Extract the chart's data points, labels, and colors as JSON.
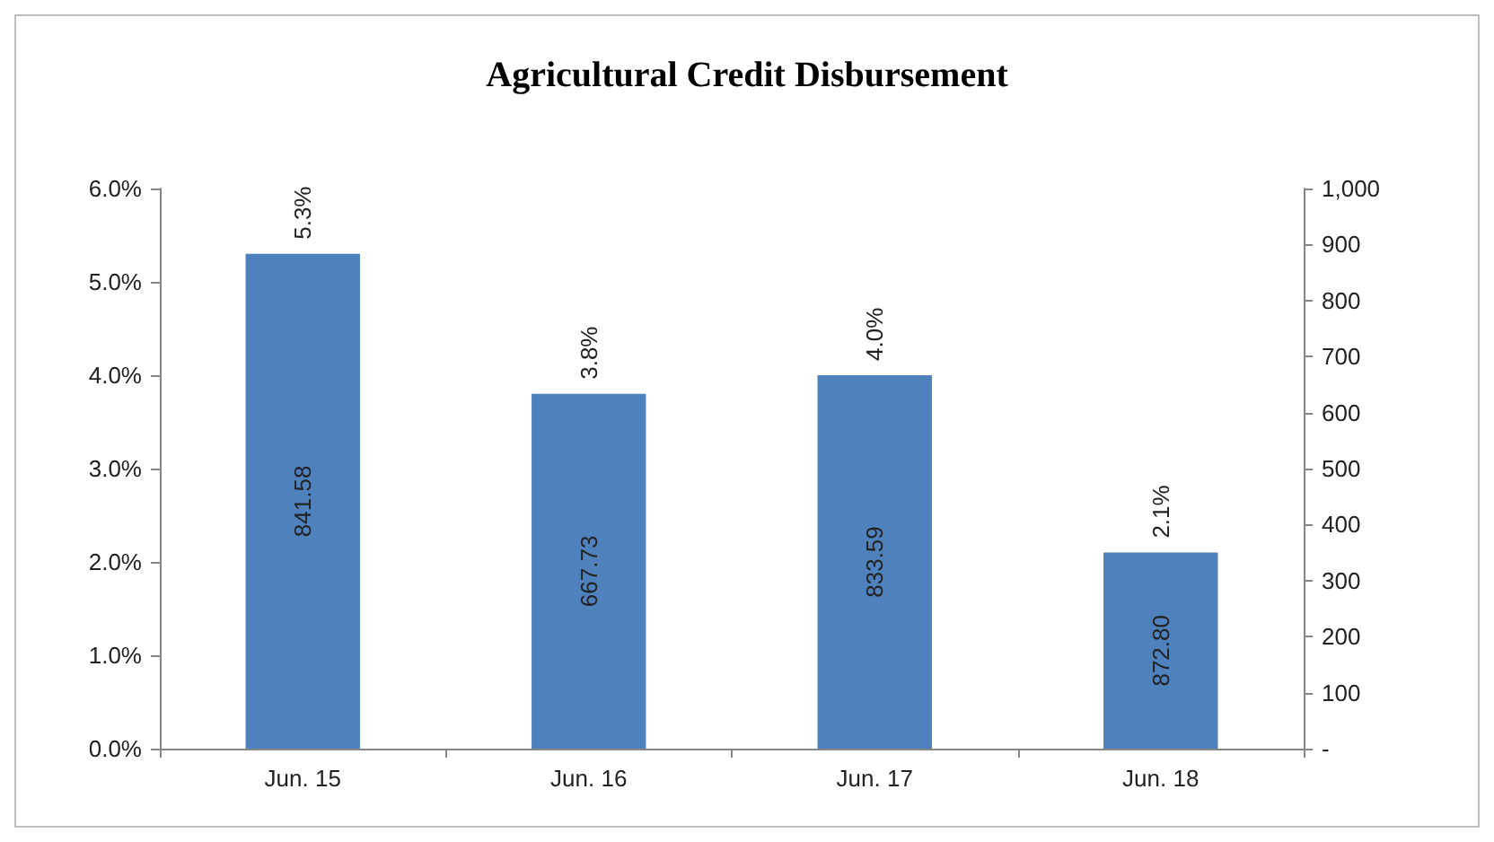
{
  "chart_data": {
    "type": "bar",
    "title": "Agricultural Credit Disbursement",
    "categories": [
      "Jun. 15",
      "Jun. 16",
      "Jun. 17",
      "Jun. 18"
    ],
    "values": [
      5.3,
      3.8,
      4.0,
      2.1
    ],
    "value_labels": [
      "5.3%",
      "3.8%",
      "4.0%",
      "2.1%"
    ],
    "color": "#4f81bd",
    "ylim": [
      0,
      6
    ],
    "yticks": [
      {
        "value": 0,
        "label": "0.0%"
      },
      {
        "value": 1,
        "label": "1.0%"
      },
      {
        "value": 2,
        "label": "2.0%"
      },
      {
        "value": 3,
        "label": "3.0%"
      },
      {
        "value": 4,
        "label": "4.0%"
      },
      {
        "value": 5,
        "label": "5.0%"
      },
      {
        "value": 6,
        "label": "6.0%"
      }
    ],
    "y2lim": [
      0,
      1000
    ],
    "y2ticks": [
      {
        "value": 0,
        "label": "-"
      },
      100,
      200,
      300,
      400,
      500,
      600,
      700,
      800,
      900,
      {
        "value": 1000,
        "label": "1,000"
      }
    ],
    "annotations": [
      "841.58",
      "667.73",
      "833.59",
      "872.80"
    ],
    "grid": false
  }
}
